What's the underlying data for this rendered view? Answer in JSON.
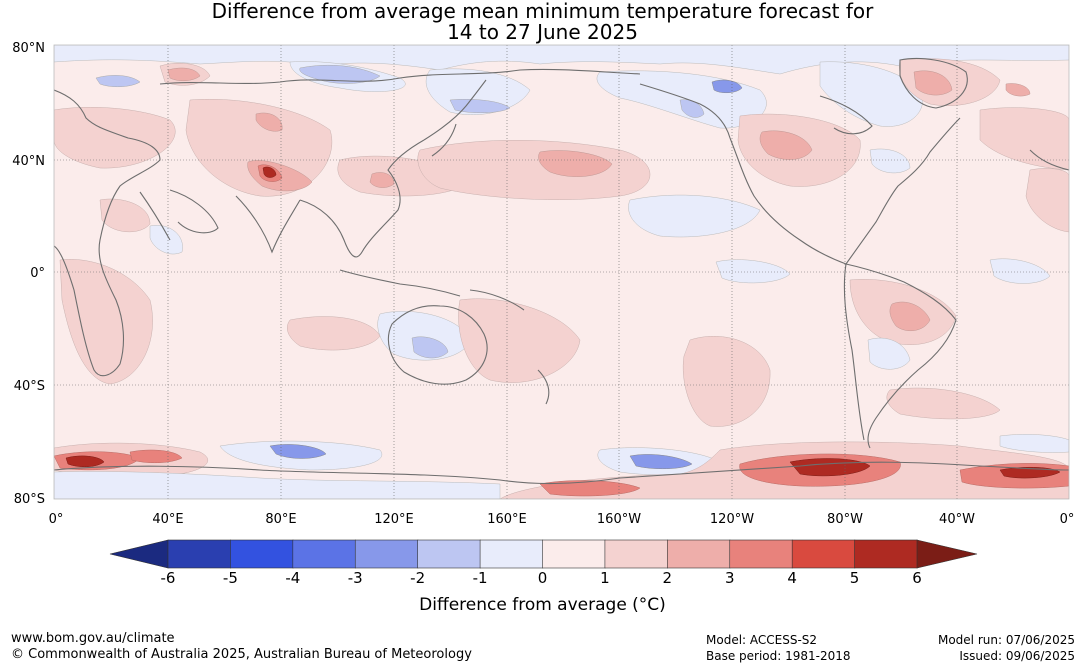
{
  "title": {
    "line1": "Difference from average mean minimum temperature forecast for",
    "line2": "14 to 27 June 2025"
  },
  "map": {
    "lat_labels": [
      "80°N",
      "40°N",
      "0°",
      "40°S",
      "80°S"
    ],
    "lon_labels": [
      "0°",
      "40°E",
      "80°E",
      "120°E",
      "160°E",
      "160°W",
      "120°W",
      "80°W",
      "40°W",
      "0°"
    ],
    "colors": {
      "ocean_base": "#fbeceb",
      "coast": "#6e6e6e",
      "grid": "#666666"
    }
  },
  "colorbar": {
    "tick_labels": [
      "-6",
      "-5",
      "-4",
      "-3",
      "-2",
      "-1",
      "0",
      "1",
      "2",
      "3",
      "4",
      "5",
      "6"
    ],
    "low_extend_color": "#1b2a80",
    "high_extend_color": "#7b1d16",
    "band_colors": [
      "#2a3fb0",
      "#3352e0",
      "#5b73e6",
      "#8798ea",
      "#bdc6f2",
      "#e8ecfb",
      "#fbeceb",
      "#f4d2d0",
      "#eeaeaa",
      "#e8827c",
      "#d94a3f",
      "#ae2a22"
    ],
    "label": "Difference from average (°C)"
  },
  "footer": {
    "website": "www.bom.gov.au/climate",
    "copyright": "© Commonwealth of Australia 2025, Australian Bureau of Meteorology",
    "model": "Model: ACCESS-S2",
    "base_period": "Base period: 1981-2018",
    "model_run": "Model run: 07/06/2025",
    "issued": "Issued: 09/06/2025"
  }
}
